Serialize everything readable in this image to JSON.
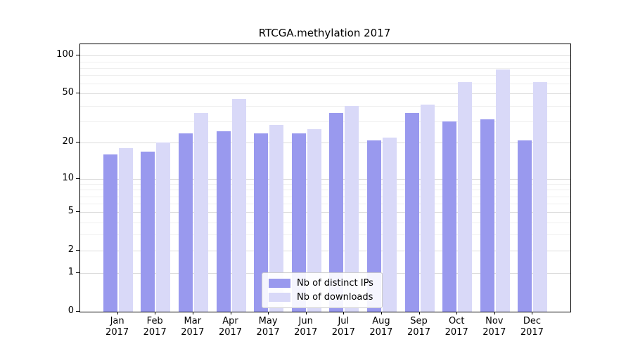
{
  "chart_data": {
    "type": "bar",
    "title": "RTCGA.methylation 2017",
    "categories": [
      "Jan",
      "Feb",
      "Mar",
      "Apr",
      "May",
      "Jun",
      "Jul",
      "Aug",
      "Sep",
      "Oct",
      "Nov",
      "Dec"
    ],
    "year_label": "2017",
    "series": [
      {
        "name": "Nb of distinct IPs",
        "color": "#9999ee",
        "values": [
          16,
          17,
          24,
          25,
          24,
          24,
          35,
          21,
          35,
          30,
          31,
          21
        ]
      },
      {
        "name": "Nb of downloads",
        "color": "#d9d9f8",
        "values": [
          18,
          20,
          35,
          45,
          28,
          26,
          40,
          22,
          41,
          62,
          78,
          62
        ]
      }
    ],
    "yscale": "log1p",
    "ylim": [
      0,
      123
    ],
    "y_ticks": [
      0,
      1,
      2,
      5,
      10,
      20,
      50,
      100
    ],
    "y_minor_ticks": [
      3,
      4,
      6,
      7,
      8,
      9,
      30,
      40,
      60,
      70,
      80,
      90
    ],
    "grid": true,
    "legend_position": "bottom-center"
  }
}
